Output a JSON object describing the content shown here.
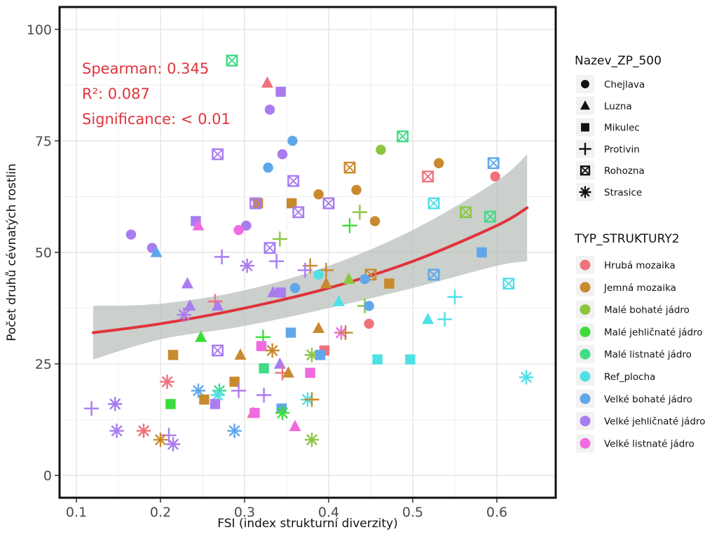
{
  "chart_data": {
    "type": "scatter",
    "xlabel": "FSI (index strukturní diverzity)",
    "ylabel": "Počet druhů cévnatých rostlin",
    "xlim": [
      0.08,
      0.67
    ],
    "ylim": [
      -5,
      105
    ],
    "xticks": [
      "0.1",
      "0.2",
      "0.3",
      "0.4",
      "0.5",
      "0.6"
    ],
    "yticks": [
      "0",
      "25",
      "50",
      "75",
      "100"
    ],
    "grid": true,
    "legend_position": "right",
    "stats": {
      "spearman": "Spearman: 0.345",
      "r2": "R²: 0.087",
      "significance": "Significance: < 0.01"
    },
    "shape_legend": {
      "title": "Nazev_ZP_500",
      "items": [
        {
          "label": "Chejlava",
          "shape": "circle"
        },
        {
          "label": "Luzna",
          "shape": "triangle"
        },
        {
          "label": "Mikulec",
          "shape": "square"
        },
        {
          "label": "Protivin",
          "shape": "plus"
        },
        {
          "label": "Rohozna",
          "shape": "boxx"
        },
        {
          "label": "Strasice",
          "shape": "asterisk"
        }
      ]
    },
    "color_legend": {
      "title": "TYP_STRUKTURY2",
      "items": [
        {
          "label": "Hrubá mozaika",
          "color": "#f0727c"
        },
        {
          "label": "Jemná mozaika",
          "color": "#c98a2e"
        },
        {
          "label": "Malé bohaté jádro",
          "color": "#8cc63f"
        },
        {
          "label": "Malé jehličnaté jádro",
          "color": "#3ddc3d"
        },
        {
          "label": "Malé listnaté jádro",
          "color": "#3fdc86"
        },
        {
          "label": "Ref_plocha",
          "color": "#4fe0e6"
        },
        {
          "label": "Velké bohaté jádro",
          "color": "#5fa7ea"
        },
        {
          "label": "Velké jehličnaté jádro",
          "color": "#a97cf0"
        },
        {
          "label": "Velké listnaté jádro",
          "color": "#f06be0"
        }
      ]
    },
    "trend": {
      "color": "#e0333a",
      "ribbon_color": "#b9c0bb",
      "x": [
        0.12,
        0.2,
        0.3,
        0.4,
        0.5,
        0.6,
        0.636
      ],
      "y": [
        32,
        34,
        37.5,
        42,
        48,
        56,
        60
      ],
      "lower": [
        26,
        30.5,
        33.5,
        37.5,
        42,
        47,
        48
      ],
      "upper": [
        38,
        38.5,
        41.5,
        47,
        55,
        66,
        72
      ]
    },
    "points": [
      {
        "x": 0.285,
        "y": 93,
        "s": "boxx",
        "c": 4
      },
      {
        "x": 0.327,
        "y": 88,
        "s": "triangle",
        "c": 0
      },
      {
        "x": 0.343,
        "y": 86,
        "s": "square",
        "c": 7
      },
      {
        "x": 0.33,
        "y": 82,
        "s": "circle",
        "c": 7
      },
      {
        "x": 0.488,
        "y": 76,
        "s": "boxx",
        "c": 4
      },
      {
        "x": 0.357,
        "y": 75,
        "s": "circle",
        "c": 6
      },
      {
        "x": 0.462,
        "y": 73,
        "s": "circle",
        "c": 2
      },
      {
        "x": 0.268,
        "y": 72,
        "s": "boxx",
        "c": 7
      },
      {
        "x": 0.345,
        "y": 72,
        "s": "circle",
        "c": 7
      },
      {
        "x": 0.531,
        "y": 70,
        "s": "circle",
        "c": 1
      },
      {
        "x": 0.596,
        "y": 70,
        "s": "boxx",
        "c": 6
      },
      {
        "x": 0.328,
        "y": 69,
        "s": "circle",
        "c": 6
      },
      {
        "x": 0.425,
        "y": 69,
        "s": "boxx",
        "c": 1
      },
      {
        "x": 0.518,
        "y": 67,
        "s": "boxx",
        "c": 0
      },
      {
        "x": 0.598,
        "y": 67,
        "s": "circle",
        "c": 0
      },
      {
        "x": 0.358,
        "y": 66,
        "s": "boxx",
        "c": 7
      },
      {
        "x": 0.433,
        "y": 64,
        "s": "circle",
        "c": 1
      },
      {
        "x": 0.388,
        "y": 63,
        "s": "circle",
        "c": 1
      },
      {
        "x": 0.316,
        "y": 61,
        "s": "square",
        "c": 1
      },
      {
        "x": 0.313,
        "y": 61,
        "s": "boxx",
        "c": 7
      },
      {
        "x": 0.356,
        "y": 61,
        "s": "square",
        "c": 1
      },
      {
        "x": 0.4,
        "y": 61,
        "s": "boxx",
        "c": 7
      },
      {
        "x": 0.525,
        "y": 61,
        "s": "boxx",
        "c": 5
      },
      {
        "x": 0.364,
        "y": 59,
        "s": "boxx",
        "c": 7
      },
      {
        "x": 0.437,
        "y": 59,
        "s": "plus",
        "c": 2
      },
      {
        "x": 0.563,
        "y": 59,
        "s": "boxx",
        "c": 2
      },
      {
        "x": 0.592,
        "y": 58,
        "s": "boxx",
        "c": 4
      },
      {
        "x": 0.242,
        "y": 57,
        "s": "square",
        "c": 7
      },
      {
        "x": 0.455,
        "y": 57,
        "s": "circle",
        "c": 1
      },
      {
        "x": 0.245,
        "y": 56,
        "s": "triangle",
        "c": 8
      },
      {
        "x": 0.302,
        "y": 56,
        "s": "circle",
        "c": 7
      },
      {
        "x": 0.425,
        "y": 56,
        "s": "plus",
        "c": 3
      },
      {
        "x": 0.293,
        "y": 55,
        "s": "circle",
        "c": 8
      },
      {
        "x": 0.165,
        "y": 54,
        "s": "circle",
        "c": 7
      },
      {
        "x": 0.342,
        "y": 53,
        "s": "plus",
        "c": 2
      },
      {
        "x": 0.19,
        "y": 51,
        "s": "circle",
        "c": 7
      },
      {
        "x": 0.33,
        "y": 51,
        "s": "boxx",
        "c": 7
      },
      {
        "x": 0.195,
        "y": 50,
        "s": "triangle",
        "c": 6
      },
      {
        "x": 0.582,
        "y": 50,
        "s": "square",
        "c": 6
      },
      {
        "x": 0.273,
        "y": 49,
        "s": "plus",
        "c": 7
      },
      {
        "x": 0.338,
        "y": 48,
        "s": "plus",
        "c": 7
      },
      {
        "x": 0.303,
        "y": 47,
        "s": "asterisk",
        "c": 7
      },
      {
        "x": 0.378,
        "y": 47,
        "s": "plus",
        "c": 1
      },
      {
        "x": 0.372,
        "y": 46,
        "s": "plus",
        "c": 7
      },
      {
        "x": 0.397,
        "y": 46,
        "s": "plus",
        "c": 1
      },
      {
        "x": 0.388,
        "y": 45,
        "s": "circle",
        "c": 5
      },
      {
        "x": 0.45,
        "y": 45,
        "s": "boxx",
        "c": 1
      },
      {
        "x": 0.525,
        "y": 45,
        "s": "boxx",
        "c": 6
      },
      {
        "x": 0.424,
        "y": 44,
        "s": "triangle",
        "c": 2
      },
      {
        "x": 0.443,
        "y": 44,
        "s": "circle",
        "c": 6
      },
      {
        "x": 0.232,
        "y": 43,
        "s": "triangle",
        "c": 7
      },
      {
        "x": 0.397,
        "y": 43,
        "s": "triangle",
        "c": 1
      },
      {
        "x": 0.472,
        "y": 43,
        "s": "square",
        "c": 1
      },
      {
        "x": 0.614,
        "y": 43,
        "s": "boxx",
        "c": 5
      },
      {
        "x": 0.36,
        "y": 42,
        "s": "circle",
        "c": 6
      },
      {
        "x": 0.334,
        "y": 41,
        "s": "triangle",
        "c": 7
      },
      {
        "x": 0.343,
        "y": 41,
        "s": "square",
        "c": 7
      },
      {
        "x": 0.55,
        "y": 40,
        "s": "plus",
        "c": 5
      },
      {
        "x": 0.265,
        "y": 39,
        "s": "plus",
        "c": 0
      },
      {
        "x": 0.412,
        "y": 39,
        "s": "triangle",
        "c": 5
      },
      {
        "x": 0.235,
        "y": 38,
        "s": "triangle",
        "c": 7
      },
      {
        "x": 0.268,
        "y": 38,
        "s": "triangle",
        "c": 7
      },
      {
        "x": 0.443,
        "y": 38,
        "s": "plus",
        "c": 2
      },
      {
        "x": 0.448,
        "y": 38,
        "s": "circle",
        "c": 6
      },
      {
        "x": 0.228,
        "y": 36,
        "s": "asterisk",
        "c": 7
      },
      {
        "x": 0.518,
        "y": 35,
        "s": "triangle",
        "c": 5
      },
      {
        "x": 0.538,
        "y": 35,
        "s": "plus",
        "c": 5
      },
      {
        "x": 0.448,
        "y": 34,
        "s": "circle",
        "c": 0
      },
      {
        "x": 0.388,
        "y": 33,
        "s": "triangle",
        "c": 1
      },
      {
        "x": 0.415,
        "y": 32,
        "s": "asterisk",
        "c": 8
      },
      {
        "x": 0.42,
        "y": 32,
        "s": "plus",
        "c": 1
      },
      {
        "x": 0.355,
        "y": 32,
        "s": "square",
        "c": 6
      },
      {
        "x": 0.248,
        "y": 31,
        "s": "triangle",
        "c": 3
      },
      {
        "x": 0.322,
        "y": 31,
        "s": "plus",
        "c": 3
      },
      {
        "x": 0.32,
        "y": 29,
        "s": "square",
        "c": 8
      },
      {
        "x": 0.333,
        "y": 28,
        "s": "asterisk",
        "c": 1
      },
      {
        "x": 0.268,
        "y": 28,
        "s": "boxx",
        "c": 7
      },
      {
        "x": 0.395,
        "y": 28,
        "s": "square",
        "c": 0
      },
      {
        "x": 0.215,
        "y": 27,
        "s": "square",
        "c": 1
      },
      {
        "x": 0.295,
        "y": 27,
        "s": "triangle",
        "c": 1
      },
      {
        "x": 0.38,
        "y": 27,
        "s": "asterisk",
        "c": 2
      },
      {
        "x": 0.39,
        "y": 27,
        "s": "square",
        "c": 6
      },
      {
        "x": 0.458,
        "y": 26,
        "s": "square",
        "c": 5
      },
      {
        "x": 0.497,
        "y": 26,
        "s": "square",
        "c": 5
      },
      {
        "x": 0.342,
        "y": 25,
        "s": "triangle",
        "c": 7
      },
      {
        "x": 0.323,
        "y": 24,
        "s": "square",
        "c": 4
      },
      {
        "x": 0.345,
        "y": 23,
        "s": "plus",
        "c": 0
      },
      {
        "x": 0.352,
        "y": 23,
        "s": "triangle",
        "c": 1
      },
      {
        "x": 0.378,
        "y": 23,
        "s": "square",
        "c": 8
      },
      {
        "x": 0.635,
        "y": 22,
        "s": "asterisk",
        "c": 5
      },
      {
        "x": 0.208,
        "y": 21,
        "s": "asterisk",
        "c": 0
      },
      {
        "x": 0.288,
        "y": 21,
        "s": "square",
        "c": 1
      },
      {
        "x": 0.245,
        "y": 19,
        "s": "asterisk",
        "c": 6
      },
      {
        "x": 0.27,
        "y": 19,
        "s": "asterisk",
        "c": 4
      },
      {
        "x": 0.268,
        "y": 18,
        "s": "asterisk",
        "c": 5
      },
      {
        "x": 0.293,
        "y": 19,
        "s": "plus",
        "c": 7
      },
      {
        "x": 0.323,
        "y": 18,
        "s": "plus",
        "c": 7
      },
      {
        "x": 0.252,
        "y": 17,
        "s": "square",
        "c": 1
      },
      {
        "x": 0.375,
        "y": 17,
        "s": "asterisk",
        "c": 5
      },
      {
        "x": 0.38,
        "y": 17,
        "s": "plus",
        "c": 1
      },
      {
        "x": 0.118,
        "y": 15,
        "s": "plus",
        "c": 7
      },
      {
        "x": 0.146,
        "y": 16,
        "s": "asterisk",
        "c": 7
      },
      {
        "x": 0.212,
        "y": 16,
        "s": "square",
        "c": 3
      },
      {
        "x": 0.265,
        "y": 16,
        "s": "square",
        "c": 7
      },
      {
        "x": 0.344,
        "y": 15,
        "s": "square",
        "c": 6
      },
      {
        "x": 0.345,
        "y": 14,
        "s": "asterisk",
        "c": 3
      },
      {
        "x": 0.31,
        "y": 14,
        "s": "triangle",
        "c": 0
      },
      {
        "x": 0.312,
        "y": 14,
        "s": "square",
        "c": 8
      },
      {
        "x": 0.36,
        "y": 11,
        "s": "triangle",
        "c": 8
      },
      {
        "x": 0.148,
        "y": 10,
        "s": "asterisk",
        "c": 7
      },
      {
        "x": 0.18,
        "y": 10,
        "s": "asterisk",
        "c": 0
      },
      {
        "x": 0.288,
        "y": 10,
        "s": "asterisk",
        "c": 6
      },
      {
        "x": 0.21,
        "y": 9,
        "s": "plus",
        "c": 7
      },
      {
        "x": 0.2,
        "y": 8,
        "s": "asterisk",
        "c": 1
      },
      {
        "x": 0.38,
        "y": 8,
        "s": "asterisk",
        "c": 2
      },
      {
        "x": 0.215,
        "y": 7,
        "s": "asterisk",
        "c": 7
      }
    ]
  }
}
